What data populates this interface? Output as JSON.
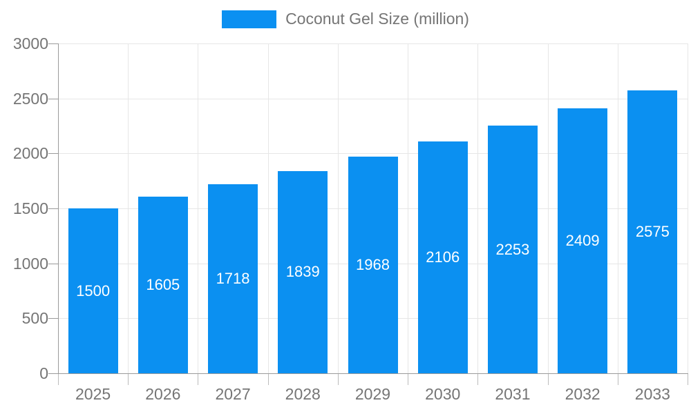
{
  "chart_data": {
    "type": "bar",
    "title": "Coconut Gel Size (million)",
    "legend": {
      "label": "Coconut Gel Size (million)",
      "position": "top"
    },
    "categories": [
      "2025",
      "2026",
      "2027",
      "2028",
      "2029",
      "2030",
      "2031",
      "2032",
      "2033"
    ],
    "series": [
      {
        "name": "Coconut Gel Size (million)",
        "values": [
          1500,
          1605,
          1718,
          1839,
          1968,
          2106,
          2253,
          2409,
          2575
        ]
      }
    ],
    "xlabel": "",
    "ylabel": "",
    "ylim": [
      0,
      3000
    ],
    "yticks": [
      0,
      500,
      1000,
      1500,
      2000,
      2500,
      3000
    ],
    "grid": true,
    "bar_labels_visible": true,
    "colors": {
      "bar": "#0b90f1",
      "bar_value_text": "#ffffff",
      "axis_line": "#9a9a9a",
      "grid_line": "#e6e6e6",
      "tick_text": "#757575",
      "legend_text": "#757575",
      "background": "#ffffff"
    }
  }
}
